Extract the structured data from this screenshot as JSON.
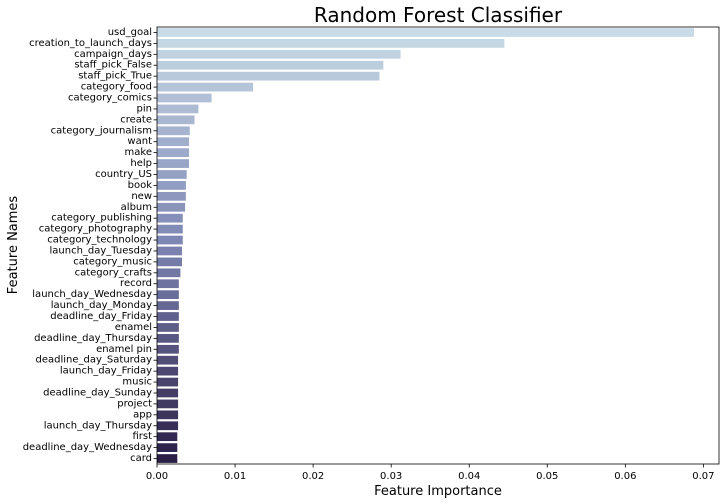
{
  "chart_data": {
    "type": "bar",
    "orientation": "horizontal",
    "title": "Random Forest Classifier",
    "xlabel": "Feature Importance",
    "ylabel": "Feature Names",
    "xlim": [
      0,
      0.072
    ],
    "xticks": [
      "0.00",
      "0.01",
      "0.02",
      "0.03",
      "0.04",
      "0.05",
      "0.06",
      "0.07"
    ],
    "grid": false,
    "palette_start": "#c8dbe6",
    "palette_mid": "#7c84b2",
    "palette_end": "#2b1f45",
    "categories": [
      "usd_goal",
      "creation_to_launch_days",
      "campaign_days",
      "staff_pick_False",
      "staff_pick_True",
      "category_food",
      "category_comics",
      "pin",
      "create",
      "category_journalism",
      "want",
      "make",
      "help",
      "country_US",
      "book",
      "new",
      "album",
      "category_publishing",
      "category_photography",
      "category_technology",
      "launch_day_Tuesday",
      "category_music",
      "category_crafts",
      "record",
      "launch_day_Wednesday",
      "launch_day_Monday",
      "deadline_day_Friday",
      "enamel",
      "deadline_day_Thursday",
      "enamel pin",
      "deadline_day_Saturday",
      "launch_day_Friday",
      "music",
      "deadline_day_Sunday",
      "project",
      "app",
      "launch_day_Thursday",
      "first",
      "deadline_day_Wednesday",
      "card"
    ],
    "values": [
      0.0688,
      0.0445,
      0.0312,
      0.029,
      0.0285,
      0.0123,
      0.007,
      0.0053,
      0.0048,
      0.0042,
      0.0041,
      0.0041,
      0.0041,
      0.0038,
      0.0037,
      0.0037,
      0.0036,
      0.0033,
      0.0033,
      0.0033,
      0.0032,
      0.0032,
      0.003,
      0.0028,
      0.0028,
      0.0028,
      0.0028,
      0.0028,
      0.0028,
      0.0028,
      0.0027,
      0.0027,
      0.0027,
      0.0027,
      0.0027,
      0.0027,
      0.0027,
      0.0026,
      0.0026,
      0.0026
    ]
  }
}
